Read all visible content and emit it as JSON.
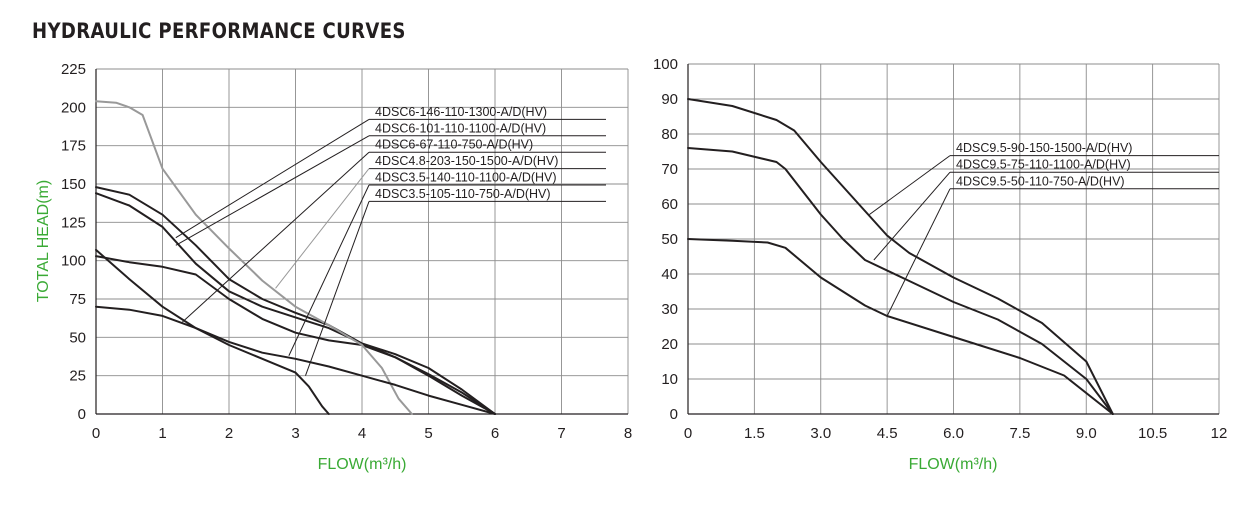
{
  "page": {
    "title": "HYDRAULIC PERFORMANCE CURVES"
  },
  "colors": {
    "axis_label": "#3aaa35",
    "curve_dark": "#231f20",
    "curve_gray": "#999999",
    "grid": "#8c8c8c"
  },
  "chart_data": [
    {
      "type": "line",
      "title": "",
      "xlabel": "FLOW(m³/h)",
      "ylabel": "TOTAL HEAD(m)",
      "xlim": [
        0,
        8
      ],
      "ylim": [
        0,
        225
      ],
      "x_ticks": [
        "0",
        "1",
        "2",
        "3",
        "4",
        "5",
        "6",
        "7",
        "8"
      ],
      "y_ticks": [
        "0",
        "25",
        "50",
        "75",
        "100",
        "125",
        "150",
        "175",
        "200",
        "225"
      ],
      "grid": true,
      "legend_position": "top-right",
      "series": [
        {
          "name": "4DSC6-146-110-1300-A/D(HV)",
          "color": "#231f20",
          "points": [
            [
              0,
              148
            ],
            [
              0.5,
              143
            ],
            [
              1,
              130
            ],
            [
              1.5,
              110
            ],
            [
              2,
              88
            ],
            [
              2.5,
              75
            ],
            [
              3,
              66
            ],
            [
              3.5,
              58
            ],
            [
              4,
              46
            ],
            [
              4.5,
              37
            ],
            [
              5,
              26
            ],
            [
              5.5,
              14
            ],
            [
              6,
              0
            ]
          ],
          "leader_at": [
            1.2,
            115
          ]
        },
        {
          "name": "4DSC6-101-110-1100-A/D(HV)",
          "color": "#231f20",
          "points": [
            [
              0,
              144
            ],
            [
              0.5,
              136
            ],
            [
              1,
              122
            ],
            [
              1.5,
              98
            ],
            [
              2,
              80
            ],
            [
              2.5,
              70
            ],
            [
              3,
              63
            ],
            [
              3.5,
              56
            ],
            [
              4,
              46
            ],
            [
              4.5,
              39
            ],
            [
              5,
              30
            ],
            [
              5.5,
              16
            ],
            [
              6,
              0
            ]
          ],
          "leader_at": [
            1.2,
            110
          ]
        },
        {
          "name": "4DSC6-67-110-750-A/D(HV)",
          "color": "#231f20",
          "points": [
            [
              0,
              103
            ],
            [
              0.5,
              99
            ],
            [
              1,
              96
            ],
            [
              1.5,
              91
            ],
            [
              2,
              75
            ],
            [
              2.5,
              62
            ],
            [
              3,
              53
            ],
            [
              3.5,
              48
            ],
            [
              4,
              45
            ],
            [
              4.5,
              37
            ],
            [
              5,
              25
            ],
            [
              5.5,
              12
            ],
            [
              6,
              0
            ]
          ],
          "leader_at": [
            1.3,
            60
          ]
        },
        {
          "name": "4DSC4.8-203-150-1500-A/D(HV)",
          "color": "#999999",
          "points": [
            [
              0,
              204
            ],
            [
              0.3,
              203
            ],
            [
              0.5,
              200
            ],
            [
              0.7,
              195
            ],
            [
              1,
              160
            ],
            [
              1.5,
              130
            ],
            [
              2,
              108
            ],
            [
              2.5,
              87
            ],
            [
              3,
              70
            ],
            [
              3.5,
              58
            ],
            [
              4,
              45
            ],
            [
              4.3,
              30
            ],
            [
              4.55,
              10
            ],
            [
              4.75,
              0
            ]
          ],
          "leader_at": [
            2.7,
            82
          ]
        },
        {
          "name": "4DSC3.5-140-110-1100-A/D(HV)",
          "color": "#231f20",
          "points": [
            [
              0,
              107
            ],
            [
              0.5,
              88
            ],
            [
              1,
              70
            ],
            [
              1.5,
              56
            ],
            [
              2,
              47
            ],
            [
              2.5,
              40
            ],
            [
              3,
              36
            ],
            [
              3.5,
              31
            ],
            [
              4,
              25
            ],
            [
              4.5,
              19
            ],
            [
              5,
              12
            ],
            [
              5.5,
              6
            ],
            [
              6,
              0
            ]
          ],
          "leader_at": [
            2.9,
            38
          ]
        },
        {
          "name": "4DSC3.5-105-110-750-A/D(HV)",
          "color": "#231f20",
          "points": [
            [
              0,
              70
            ],
            [
              0.5,
              68
            ],
            [
              1,
              64
            ],
            [
              1.5,
              56
            ],
            [
              2,
              45
            ],
            [
              2.5,
              36
            ],
            [
              3,
              27
            ],
            [
              3.2,
              18
            ],
            [
              3.4,
              5
            ],
            [
              3.5,
              0
            ]
          ],
          "leader_at": [
            3.15,
            25
          ]
        }
      ]
    },
    {
      "type": "line",
      "title": "",
      "xlabel": "FLOW(m³/h)",
      "ylabel": "",
      "xlim": [
        0,
        12
      ],
      "ylim": [
        0,
        100
      ],
      "x_ticks": [
        "0",
        "1.5",
        "3.0",
        "4.5",
        "6.0",
        "7.5",
        "9.0",
        "10.5",
        "12"
      ],
      "y_ticks": [
        "0",
        "10",
        "20",
        "30",
        "40",
        "50",
        "60",
        "70",
        "80",
        "90",
        "100"
      ],
      "grid": true,
      "legend_position": "top-right",
      "series": [
        {
          "name": "4DSC9.5-90-150-1500-A/D(HV)",
          "color": "#231f20",
          "points": [
            [
              0,
              90
            ],
            [
              1,
              88
            ],
            [
              2,
              84
            ],
            [
              2.4,
              81
            ],
            [
              3,
              72
            ],
            [
              3.5,
              65
            ],
            [
              4,
              58
            ],
            [
              4.5,
              51
            ],
            [
              5,
              46
            ],
            [
              6,
              39
            ],
            [
              7,
              33
            ],
            [
              8,
              26
            ],
            [
              9,
              15
            ],
            [
              9.4,
              5
            ],
            [
              9.6,
              0
            ]
          ],
          "leader_at": [
            4.1,
            57
          ]
        },
        {
          "name": "4DSC9.5-75-110-1100-A/D(HV)",
          "color": "#231f20",
          "points": [
            [
              0,
              76
            ],
            [
              1,
              75
            ],
            [
              2,
              72
            ],
            [
              2.2,
              70
            ],
            [
              3,
              57
            ],
            [
              3.5,
              50
            ],
            [
              4,
              44
            ],
            [
              5,
              38
            ],
            [
              6,
              32
            ],
            [
              7,
              27
            ],
            [
              8,
              20
            ],
            [
              9,
              10
            ],
            [
              9.6,
              0
            ]
          ],
          "leader_at": [
            4.2,
            44
          ]
        },
        {
          "name": "4DSC9.5-50-110-750-A/D(HV)",
          "color": "#231f20",
          "points": [
            [
              0,
              50
            ],
            [
              1,
              49.5
            ],
            [
              1.8,
              49
            ],
            [
              2.2,
              47.5
            ],
            [
              3,
              39
            ],
            [
              3.5,
              35
            ],
            [
              4,
              31
            ],
            [
              4.5,
              28
            ],
            [
              6,
              22
            ],
            [
              7.5,
              16
            ],
            [
              8.5,
              11
            ],
            [
              9.6,
              0
            ]
          ],
          "leader_at": [
            4.5,
            28
          ]
        }
      ]
    }
  ]
}
